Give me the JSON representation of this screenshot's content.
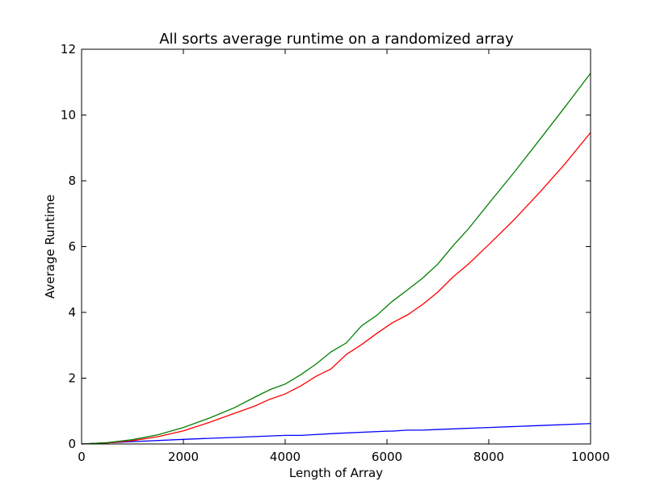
{
  "chart_data": {
    "type": "line",
    "title": "All sorts average runtime on a randomized array",
    "xlabel": "Length of Array",
    "ylabel": "Average Runtime",
    "xlim": [
      0,
      10000
    ],
    "ylim": [
      0,
      12
    ],
    "xticks": [
      0,
      2000,
      4000,
      6000,
      8000,
      10000
    ],
    "yticks": [
      0,
      2,
      4,
      6,
      8,
      10,
      12
    ],
    "grid": false,
    "series": [
      {
        "color": "#0000ff",
        "x": [
          0,
          1000,
          2000,
          3000,
          4000,
          4300,
          5000,
          6000,
          6100,
          6400,
          6700,
          7000,
          8000,
          9000,
          10000
        ],
        "y": [
          0,
          0.07,
          0.14,
          0.2,
          0.26,
          0.26,
          0.32,
          0.39,
          0.39,
          0.42,
          0.42,
          0.44,
          0.5,
          0.56,
          0.62
        ]
      },
      {
        "color": "#ff0000",
        "x": [
          0,
          500,
          1000,
          1500,
          2000,
          2500,
          3000,
          3400,
          3700,
          4000,
          4300,
          4600,
          4900,
          5200,
          5500,
          5800,
          6100,
          6400,
          6700,
          7000,
          7300,
          7600,
          8000,
          8500,
          9000,
          9500,
          10000
        ],
        "y": [
          0,
          0.03,
          0.1,
          0.22,
          0.4,
          0.65,
          0.93,
          1.15,
          1.36,
          1.52,
          1.76,
          2.05,
          2.28,
          2.72,
          3.02,
          3.36,
          3.68,
          3.92,
          4.24,
          4.62,
          5.08,
          5.47,
          6.06,
          6.82,
          7.65,
          8.52,
          9.47
        ]
      },
      {
        "color": "#008000",
        "x": [
          0,
          500,
          1000,
          1500,
          2000,
          2500,
          3000,
          3400,
          3700,
          4000,
          4300,
          4600,
          4900,
          5200,
          5500,
          5800,
          6100,
          6400,
          6700,
          7000,
          7300,
          7600,
          8000,
          8500,
          9000,
          9500,
          10000
        ],
        "y": [
          0,
          0.04,
          0.13,
          0.28,
          0.5,
          0.78,
          1.1,
          1.42,
          1.65,
          1.82,
          2.1,
          2.42,
          2.8,
          3.07,
          3.59,
          3.91,
          4.33,
          4.68,
          5.04,
          5.47,
          6.03,
          6.54,
          7.31,
          8.26,
          9.25,
          10.25,
          11.27
        ]
      }
    ]
  }
}
